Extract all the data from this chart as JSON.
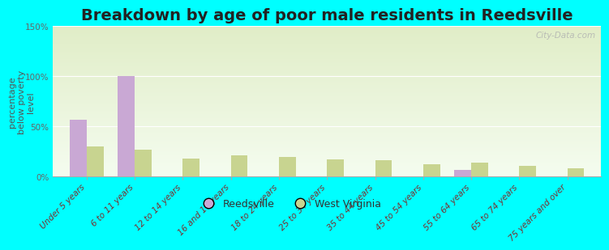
{
  "title": "Breakdown by age of poor male residents in Reedsville",
  "ylabel": "percentage\nbelow poverty\nlevel",
  "categories": [
    "Under 5 years",
    "6 to 11 years",
    "12 to 14 years",
    "16 and 17 years",
    "18 to 24 years",
    "25 to 34 years",
    "35 to 44 years",
    "45 to 54 years",
    "55 to 64 years",
    "65 to 74 years",
    "75 years and over"
  ],
  "reedsville_values": [
    57,
    100,
    0,
    0,
    0,
    0,
    0,
    0,
    7,
    0,
    0
  ],
  "west_virginia_values": [
    30,
    27,
    18,
    21,
    20,
    17,
    16,
    12,
    14,
    11,
    8
  ],
  "reedsville_color": "#c9a8d4",
  "west_virginia_color": "#c8d490",
  "ylim": [
    0,
    150
  ],
  "yticks": [
    0,
    50,
    100,
    150
  ],
  "ytick_labels": [
    "0%",
    "50%",
    "100%",
    "150%"
  ],
  "background_color": "#00ffff",
  "watermark": "City-Data.com",
  "legend_labels": [
    "Reedsville",
    "West Virginia"
  ],
  "bar_width": 0.35,
  "title_fontsize": 14,
  "axis_label_fontsize": 8,
  "tick_fontsize": 7.5,
  "legend_fontsize": 9
}
